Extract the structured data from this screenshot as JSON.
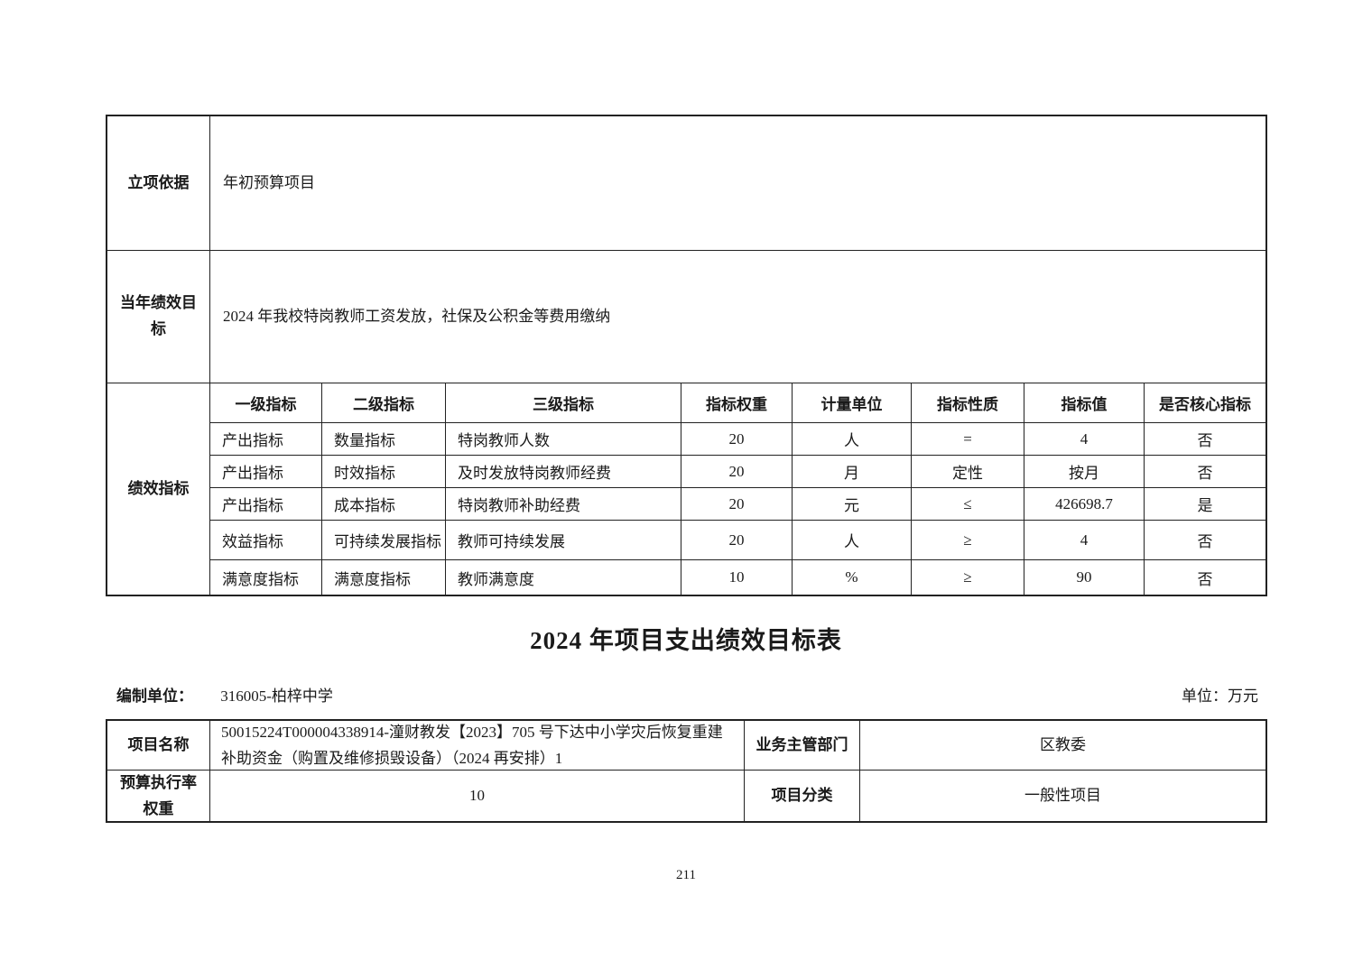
{
  "document": {
    "title": "2024 年项目支出绩效目标表",
    "page_number": "211",
    "prepared_by_label": "编制单位：",
    "prepared_by_value": "316005-柏梓中学",
    "unit_note": "单位：万元"
  },
  "detail_table": {
    "basis_label": "立项依据",
    "basis_value": "年初预算项目",
    "goal_label": "当年绩效目标",
    "goal_value": "2024 年我校特岗教师工资发放，社保及公积金等费用缴纳",
    "indicator_label": "绩效指标",
    "headers": [
      "一级指标",
      "二级指标",
      "三级指标",
      "指标权重",
      "计量单位",
      "指标性质",
      "指标值",
      "是否核心指标"
    ],
    "rows": [
      {
        "level1": "产出指标",
        "level2": "数量指标",
        "level3": "特岗教师人数",
        "weight": "20",
        "unit": "人",
        "nature": "=",
        "value": "4",
        "core": "否"
      },
      {
        "level1": "产出指标",
        "level2": "时效指标",
        "level3": "及时发放特岗教师经费",
        "weight": "20",
        "unit": "月",
        "nature": "定性",
        "value": "按月",
        "core": "否"
      },
      {
        "level1": "产出指标",
        "level2": "成本指标",
        "level3": "特岗教师补助经费",
        "weight": "20",
        "unit": "元",
        "nature": "≤",
        "value": "426698.7",
        "core": "是"
      },
      {
        "level1": "效益指标",
        "level2": "可持续发展指标",
        "level3": "教师可持续发展",
        "weight": "20",
        "unit": "人",
        "nature": "≥",
        "value": "4",
        "core": "否"
      },
      {
        "level1": "满意度指标",
        "level2": "满意度指标",
        "level3": "教师满意度",
        "weight": "10",
        "unit": "%",
        "nature": "≥",
        "value": "90",
        "core": "否"
      }
    ]
  },
  "summary_table": {
    "project_name_label": "项目名称",
    "project_name_value": "50015224T000004338914-潼财教发【2023】705 号下达中小学灾后恢复重建补助资金（购置及维修损毁设备）（2024 再安排）1",
    "dept_label": "业务主管部门",
    "dept_value": "区教委",
    "budget_weight_label": "预算执行率权重",
    "budget_weight_value": "10",
    "category_label": "项目分类",
    "category_value": "一般性项目"
  },
  "colors": {
    "border": "#222222",
    "text": "#1a1a1a",
    "background": "#ffffff"
  }
}
